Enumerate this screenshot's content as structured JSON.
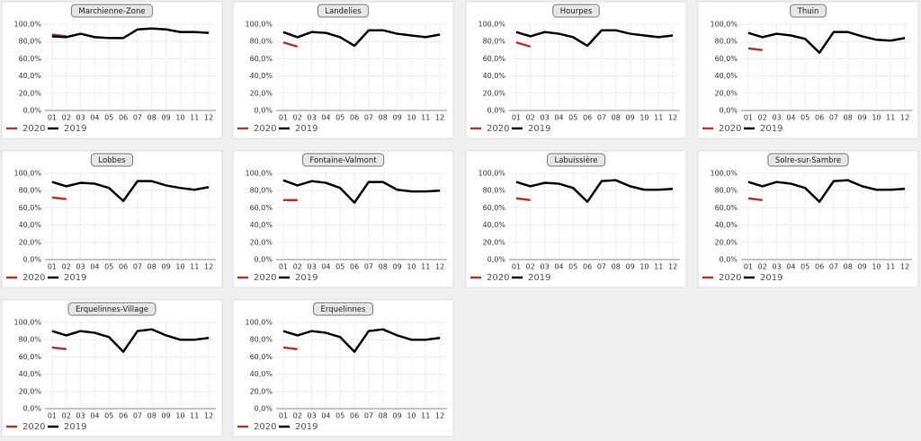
{
  "chart_data": [
    {
      "type": "line",
      "title": "Marchienne-Zone",
      "categories": [
        "01",
        "02",
        "03",
        "04",
        "05",
        "06",
        "07",
        "08",
        "09",
        "10",
        "11",
        "12"
      ],
      "series": [
        {
          "name": "2020",
          "color": "#b03a2e",
          "values": [
            88,
            86,
            null,
            null,
            null,
            null,
            null,
            null,
            null,
            null,
            null,
            null
          ]
        },
        {
          "name": "2019",
          "color": "#000000",
          "values": [
            86,
            85,
            89,
            85,
            84,
            84,
            94,
            95,
            94,
            91,
            91,
            90
          ]
        }
      ],
      "ylim": [
        0,
        100
      ],
      "yticks": [
        {
          "value": 0,
          "label": "0,0%"
        },
        {
          "value": 20,
          "label": "20,0%"
        },
        {
          "value": 40,
          "label": "40,0%"
        },
        {
          "value": 60,
          "label": "60,0%"
        },
        {
          "value": 80,
          "label": "80,0%"
        },
        {
          "value": 100,
          "label": "100,0%"
        }
      ],
      "grid": true
    },
    {
      "type": "line",
      "title": "Landelies",
      "categories": [
        "01",
        "02",
        "03",
        "04",
        "05",
        "06",
        "07",
        "08",
        "09",
        "10",
        "11",
        "12"
      ],
      "series": [
        {
          "name": "2020",
          "color": "#b03a2e",
          "values": [
            79,
            74,
            null,
            null,
            null,
            null,
            null,
            null,
            null,
            null,
            null,
            null
          ]
        },
        {
          "name": "2019",
          "color": "#000000",
          "values": [
            91,
            85,
            91,
            90,
            85,
            75,
            93,
            93,
            89,
            87,
            85,
            88
          ]
        }
      ],
      "ylim": [
        0,
        100
      ],
      "yticks": [
        {
          "value": 0,
          "label": "0,0%"
        },
        {
          "value": 20,
          "label": "20,0%"
        },
        {
          "value": 40,
          "label": "40,0%"
        },
        {
          "value": 60,
          "label": "60,0%"
        },
        {
          "value": 80,
          "label": "80,0%"
        },
        {
          "value": 100,
          "label": "100,0%"
        }
      ],
      "grid": true
    },
    {
      "type": "line",
      "title": "Hourpes",
      "categories": [
        "01",
        "02",
        "03",
        "04",
        "05",
        "06",
        "07",
        "08",
        "09",
        "10",
        "11",
        "12"
      ],
      "series": [
        {
          "name": "2020",
          "color": "#b03a2e",
          "values": [
            79,
            74,
            null,
            null,
            null,
            null,
            null,
            null,
            null,
            null,
            null,
            null
          ]
        },
        {
          "name": "2019",
          "color": "#000000",
          "values": [
            91,
            86,
            91,
            89,
            85,
            75,
            93,
            93,
            89,
            87,
            85,
            87
          ]
        }
      ],
      "ylim": [
        0,
        100
      ],
      "yticks": [
        {
          "value": 0,
          "label": "0,0%"
        },
        {
          "value": 20,
          "label": "20,0%"
        },
        {
          "value": 40,
          "label": "40,0%"
        },
        {
          "value": 60,
          "label": "60,0%"
        },
        {
          "value": 80,
          "label": "80,0%"
        },
        {
          "value": 100,
          "label": "100,0%"
        }
      ],
      "grid": true
    },
    {
      "type": "line",
      "title": "Thuin",
      "categories": [
        "01",
        "02",
        "03",
        "04",
        "05",
        "06",
        "07",
        "08",
        "09",
        "10",
        "11",
        "12"
      ],
      "series": [
        {
          "name": "2020",
          "color": "#b03a2e",
          "values": [
            72,
            70,
            null,
            null,
            null,
            null,
            null,
            null,
            null,
            null,
            null,
            null
          ]
        },
        {
          "name": "2019",
          "color": "#000000",
          "values": [
            90,
            85,
            89,
            87,
            83,
            67,
            91,
            91,
            86,
            82,
            81,
            84
          ]
        }
      ],
      "ylim": [
        0,
        100
      ],
      "yticks": [
        {
          "value": 0,
          "label": "0,0%"
        },
        {
          "value": 20,
          "label": "20,0%"
        },
        {
          "value": 40,
          "label": "40,0%"
        },
        {
          "value": 60,
          "label": "60,0%"
        },
        {
          "value": 80,
          "label": "80,0%"
        },
        {
          "value": 100,
          "label": "100,0%"
        }
      ],
      "grid": true
    },
    {
      "type": "line",
      "title": "Lobbes",
      "categories": [
        "01",
        "02",
        "03",
        "04",
        "05",
        "06",
        "07",
        "08",
        "09",
        "10",
        "11",
        "12"
      ],
      "series": [
        {
          "name": "2020",
          "color": "#b03a2e",
          "values": [
            72,
            70,
            null,
            null,
            null,
            null,
            null,
            null,
            null,
            null,
            null,
            null
          ]
        },
        {
          "name": "2019",
          "color": "#000000",
          "values": [
            90,
            85,
            89,
            88,
            83,
            68,
            91,
            91,
            86,
            83,
            81,
            84
          ]
        }
      ],
      "ylim": [
        0,
        100
      ],
      "yticks": [
        {
          "value": 0,
          "label": "0,0%"
        },
        {
          "value": 20,
          "label": "20,0%"
        },
        {
          "value": 40,
          "label": "40,0%"
        },
        {
          "value": 60,
          "label": "60,0%"
        },
        {
          "value": 80,
          "label": "80,0%"
        },
        {
          "value": 100,
          "label": "100,0%"
        }
      ],
      "grid": true
    },
    {
      "type": "line",
      "title": "Fontaine-Valmont",
      "categories": [
        "01",
        "02",
        "03",
        "04",
        "05",
        "06",
        "07",
        "08",
        "09",
        "10",
        "11",
        "12"
      ],
      "series": [
        {
          "name": "2020",
          "color": "#b03a2e",
          "values": [
            69,
            69,
            null,
            null,
            null,
            null,
            null,
            null,
            null,
            null,
            null,
            null
          ]
        },
        {
          "name": "2019",
          "color": "#000000",
          "values": [
            92,
            86,
            91,
            89,
            83,
            66,
            90,
            90,
            81,
            79,
            79,
            80
          ]
        }
      ],
      "ylim": [
        0,
        100
      ],
      "yticks": [
        {
          "value": 0,
          "label": "0,0%"
        },
        {
          "value": 20,
          "label": "20,0%"
        },
        {
          "value": 40,
          "label": "40,0%"
        },
        {
          "value": 60,
          "label": "60,0%"
        },
        {
          "value": 80,
          "label": "80,0%"
        },
        {
          "value": 100,
          "label": "100,0%"
        }
      ],
      "grid": true
    },
    {
      "type": "line",
      "title": "Labuissière",
      "categories": [
        "01",
        "02",
        "03",
        "04",
        "05",
        "06",
        "07",
        "08",
        "09",
        "10",
        "11",
        "12"
      ],
      "series": [
        {
          "name": "2020",
          "color": "#b03a2e",
          "values": [
            71,
            69,
            null,
            null,
            null,
            null,
            null,
            null,
            null,
            null,
            null,
            null
          ]
        },
        {
          "name": "2019",
          "color": "#000000",
          "values": [
            90,
            85,
            89,
            88,
            83,
            67,
            91,
            92,
            85,
            81,
            81,
            82
          ]
        }
      ],
      "ylim": [
        0,
        100
      ],
      "yticks": [
        {
          "value": 0,
          "label": "0,0%"
        },
        {
          "value": 20,
          "label": "20,0%"
        },
        {
          "value": 40,
          "label": "40,0%"
        },
        {
          "value": 60,
          "label": "60,0%"
        },
        {
          "value": 80,
          "label": "80,0%"
        },
        {
          "value": 100,
          "label": "100,0%"
        }
      ],
      "grid": true
    },
    {
      "type": "line",
      "title": "Solre-sur-Sambre",
      "categories": [
        "01",
        "02",
        "03",
        "04",
        "05",
        "06",
        "07",
        "08",
        "09",
        "10",
        "11",
        "12"
      ],
      "series": [
        {
          "name": "2020",
          "color": "#b03a2e",
          "values": [
            71,
            69,
            null,
            null,
            null,
            null,
            null,
            null,
            null,
            null,
            null,
            null
          ]
        },
        {
          "name": "2019",
          "color": "#000000",
          "values": [
            90,
            85,
            90,
            88,
            83,
            67,
            91,
            92,
            85,
            81,
            81,
            82
          ]
        }
      ],
      "ylim": [
        0,
        100
      ],
      "yticks": [
        {
          "value": 0,
          "label": "0,0%"
        },
        {
          "value": 20,
          "label": "20,0%"
        },
        {
          "value": 40,
          "label": "40,0%"
        },
        {
          "value": 60,
          "label": "60,0%"
        },
        {
          "value": 80,
          "label": "80,0%"
        },
        {
          "value": 100,
          "label": "100,0%"
        }
      ],
      "grid": true
    },
    {
      "type": "line",
      "title": "Erquelinnes-Village",
      "categories": [
        "01",
        "02",
        "03",
        "04",
        "05",
        "06",
        "07",
        "08",
        "09",
        "10",
        "11",
        "12"
      ],
      "series": [
        {
          "name": "2020",
          "color": "#b03a2e",
          "values": [
            71,
            69,
            null,
            null,
            null,
            null,
            null,
            null,
            null,
            null,
            null,
            null
          ]
        },
        {
          "name": "2019",
          "color": "#000000",
          "values": [
            90,
            85,
            90,
            88,
            83,
            66,
            90,
            92,
            85,
            80,
            80,
            82
          ]
        }
      ],
      "ylim": [
        0,
        100
      ],
      "yticks": [
        {
          "value": 0,
          "label": "0,0%"
        },
        {
          "value": 20,
          "label": "20,0%"
        },
        {
          "value": 40,
          "label": "40,0%"
        },
        {
          "value": 60,
          "label": "60,0%"
        },
        {
          "value": 80,
          "label": "80,0%"
        },
        {
          "value": 100,
          "label": "100,0%"
        }
      ],
      "grid": true
    },
    {
      "type": "line",
      "title": "Erquelinnes",
      "categories": [
        "01",
        "02",
        "03",
        "04",
        "05",
        "06",
        "07",
        "08",
        "09",
        "10",
        "11",
        "12"
      ],
      "series": [
        {
          "name": "2020",
          "color": "#b03a2e",
          "values": [
            71,
            69,
            null,
            null,
            null,
            null,
            null,
            null,
            null,
            null,
            null,
            null
          ]
        },
        {
          "name": "2019",
          "color": "#000000",
          "values": [
            90,
            85,
            90,
            88,
            83,
            66,
            90,
            92,
            85,
            80,
            80,
            82
          ]
        }
      ],
      "ylim": [
        0,
        100
      ],
      "yticks": [
        {
          "value": 0,
          "label": "0,0%"
        },
        {
          "value": 20,
          "label": "20,0%"
        },
        {
          "value": 40,
          "label": "40,0%"
        },
        {
          "value": 60,
          "label": "60,0%"
        },
        {
          "value": 80,
          "label": "80,0%"
        },
        {
          "value": 100,
          "label": "100,0%"
        }
      ],
      "grid": true
    }
  ]
}
